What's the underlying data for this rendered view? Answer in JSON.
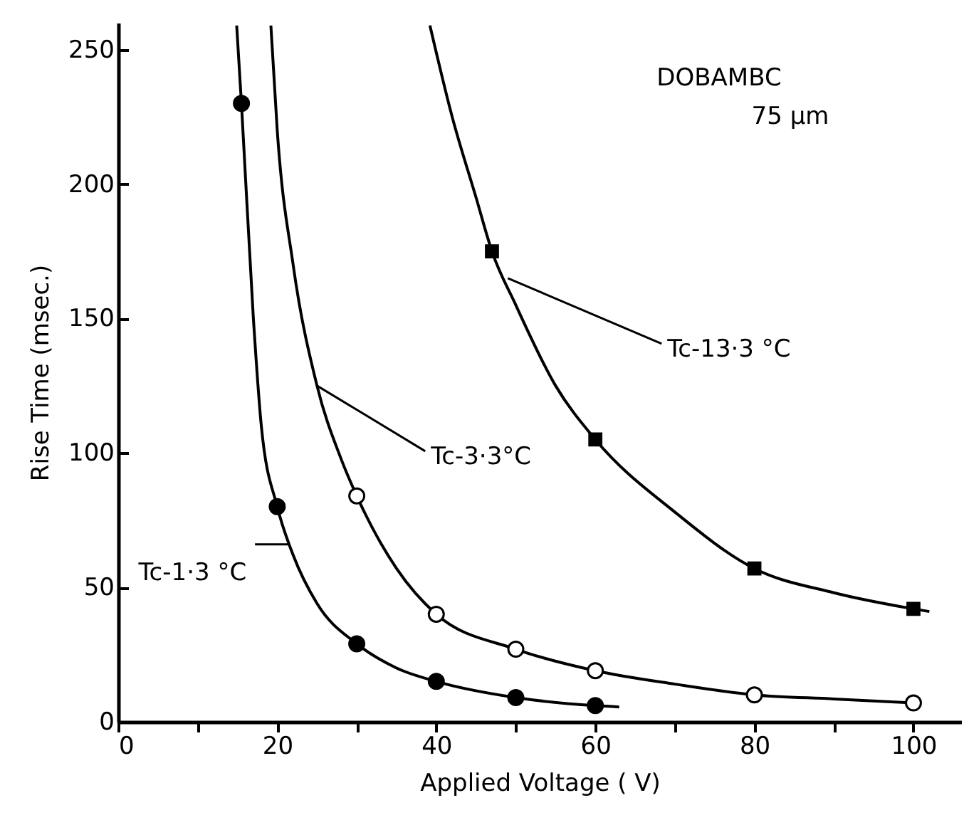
{
  "chart_data": {
    "type": "scatter",
    "xlabel": "Applied Voltage ( V)",
    "ylabel": "Rise Time (msec.)",
    "annotations": [
      "DOBAMBC",
      "75 µm",
      {
        "text": "Tc-1·3 °C",
        "x": 21.5,
        "y": 66
      },
      {
        "text": "Tc-3·3°C",
        "x": 25,
        "y": 125
      },
      {
        "text": "Tc-13·3 °C",
        "x": 49,
        "y": 165
      }
    ],
    "xlim": [
      0,
      106
    ],
    "ylim": [
      0,
      260
    ],
    "xticks": [
      0,
      {
        "value": 10,
        "label": null
      },
      20,
      {
        "value": 30,
        "label": null
      },
      40,
      {
        "value": 50,
        "label": null
      },
      60,
      {
        "value": 70,
        "label": null
      },
      80,
      {
        "value": 90,
        "label": null
      },
      100
    ],
    "yticks": [
      0,
      50,
      100,
      150,
      200,
      250
    ],
    "grid": false,
    "series": [
      {
        "type": "line",
        "color": "#000000",
        "x": [
          14.9,
          15.5,
          17,
          18,
          20,
          22,
          25,
          30,
          35,
          40,
          50,
          60,
          63
        ],
        "values": [
          259,
          230,
          150,
          110,
          80,
          62,
          44,
          29,
          20,
          15,
          9,
          6,
          5.5
        ]
      },
      {
        "type": "line",
        "color": "#000000",
        "x": [
          19.2,
          20,
          22,
          25,
          28,
          30,
          35,
          40,
          50,
          60,
          70,
          80,
          90,
          100
        ],
        "values": [
          259,
          220,
          170,
          125,
          98,
          84,
          57,
          40,
          27,
          19,
          14,
          10,
          8.5,
          7
        ]
      },
      {
        "type": "line",
        "color": "#000000",
        "x": [
          39.2,
          42,
          45,
          47,
          50,
          55,
          60,
          70,
          80,
          90,
          100,
          102
        ],
        "values": [
          259,
          225,
          195,
          175,
          155,
          125,
          105,
          78,
          57,
          48,
          42,
          41
        ]
      },
      {
        "type": "scatter",
        "marker": "circle",
        "color": "#000000",
        "x": [
          15.5,
          20,
          30,
          40,
          50,
          60
        ],
        "values": [
          230,
          80,
          29,
          15,
          9,
          6
        ]
      },
      {
        "type": "scatter",
        "marker": "circle",
        "color": "#ffffff",
        "x": [
          30,
          40,
          50,
          60,
          80,
          100
        ],
        "values": [
          84,
          40,
          27,
          19,
          10,
          7
        ]
      },
      {
        "type": "scatter",
        "marker": "square",
        "color": "#000000",
        "x": [
          47,
          60,
          80,
          100
        ],
        "values": [
          175,
          105,
          57,
          42
        ]
      }
    ]
  }
}
